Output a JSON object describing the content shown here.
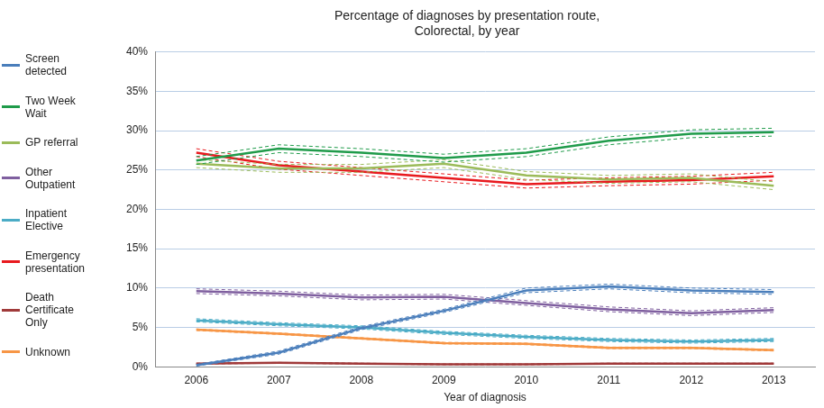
{
  "chart_data": {
    "type": "line",
    "title": [
      "Percentage of diagnoses by presentation route,",
      "Colorectal, by year"
    ],
    "x_label": "Year of diagnosis",
    "categories": [
      "2006",
      "2007",
      "2008",
      "2009",
      "2010",
      "2011",
      "2012",
      "2013"
    ],
    "ylim": [
      0,
      40
    ],
    "yticks": [
      {
        "value": 0,
        "label": "0%"
      },
      {
        "value": 5,
        "label": "5%"
      },
      {
        "value": 10,
        "label": "10%"
      },
      {
        "value": 15,
        "label": "15%"
      },
      {
        "value": 20,
        "label": "20%"
      },
      {
        "value": 25,
        "label": "25%"
      },
      {
        "value": 30,
        "label": "30%"
      },
      {
        "value": 35,
        "label": "35%"
      },
      {
        "value": 40,
        "label": "40%"
      }
    ],
    "grid": true,
    "legend": "left",
    "series": [
      {
        "name": "Screen detected",
        "color": "#4a7ebb",
        "values": [
          0.2,
          1.8,
          4.9,
          7.1,
          9.7,
          10.2,
          9.7,
          9.5
        ],
        "ci_lower": [
          0.1,
          1.6,
          4.7,
          6.9,
          9.4,
          9.9,
          9.4,
          9.2
        ],
        "ci_upper": [
          0.3,
          2.0,
          5.1,
          7.3,
          10.0,
          10.5,
          10.0,
          9.8
        ]
      },
      {
        "name": "Two Week Wait",
        "color": "#1f9b4a",
        "values": [
          26.2,
          27.7,
          27.2,
          26.5,
          27.2,
          28.7,
          29.6,
          29.8
        ],
        "ci_lower": [
          25.7,
          27.2,
          26.7,
          26.0,
          26.7,
          28.2,
          29.1,
          29.3
        ],
        "ci_upper": [
          26.7,
          28.2,
          27.7,
          27.0,
          27.7,
          29.2,
          30.1,
          30.3
        ]
      },
      {
        "name": "GP referral",
        "color": "#9bbb59",
        "values": [
          25.8,
          25.2,
          25.2,
          25.8,
          24.3,
          23.8,
          24.0,
          23.0
        ],
        "ci_lower": [
          25.3,
          24.7,
          24.7,
          25.3,
          23.8,
          23.3,
          23.5,
          22.5
        ],
        "ci_upper": [
          26.3,
          25.7,
          25.7,
          26.3,
          24.8,
          24.3,
          24.5,
          23.5
        ]
      },
      {
        "name": "Other Outpatient",
        "color": "#7f5f9f",
        "values": [
          9.6,
          9.3,
          8.8,
          8.9,
          8.1,
          7.3,
          6.8,
          7.2
        ],
        "ci_lower": [
          9.3,
          9.0,
          8.5,
          8.6,
          7.8,
          7.0,
          6.5,
          6.9
        ],
        "ci_upper": [
          9.9,
          9.6,
          9.1,
          9.2,
          8.4,
          7.6,
          7.1,
          7.5
        ]
      },
      {
        "name": "Inpatient Elective",
        "color": "#4bacc6",
        "values": [
          5.9,
          5.4,
          5.0,
          4.3,
          3.8,
          3.4,
          3.2,
          3.4
        ],
        "ci_lower": [
          5.7,
          5.2,
          4.8,
          4.1,
          3.6,
          3.2,
          3.0,
          3.2
        ],
        "ci_upper": [
          6.1,
          5.6,
          5.2,
          4.5,
          4.0,
          3.6,
          3.4,
          3.6
        ]
      },
      {
        "name": "Emergency presentation",
        "color": "#e8191e",
        "values": [
          27.2,
          25.6,
          24.8,
          24.0,
          23.2,
          23.5,
          23.7,
          24.2
        ],
        "ci_lower": [
          26.7,
          25.1,
          24.3,
          23.5,
          22.7,
          23.0,
          23.2,
          23.7
        ],
        "ci_upper": [
          27.7,
          26.1,
          25.3,
          24.5,
          23.7,
          24.0,
          24.2,
          24.7
        ]
      },
      {
        "name": "Death Certificate Only",
        "color": "#a03a3a",
        "values": [
          0.4,
          0.5,
          0.4,
          0.3,
          0.3,
          0.4,
          0.4,
          0.4
        ],
        "ci_lower": [
          0.35,
          0.45,
          0.35,
          0.25,
          0.25,
          0.35,
          0.35,
          0.35
        ],
        "ci_upper": [
          0.45,
          0.55,
          0.45,
          0.35,
          0.35,
          0.45,
          0.45,
          0.45
        ]
      },
      {
        "name": "Unknown",
        "color": "#f79646",
        "values": [
          4.7,
          4.2,
          3.6,
          3.0,
          2.9,
          2.4,
          2.4,
          2.1
        ],
        "ci_lower": [
          4.6,
          4.1,
          3.5,
          2.9,
          2.8,
          2.3,
          2.3,
          2.0
        ],
        "ci_upper": [
          4.8,
          4.3,
          3.7,
          3.1,
          3.0,
          2.5,
          2.5,
          2.2
        ]
      }
    ]
  }
}
